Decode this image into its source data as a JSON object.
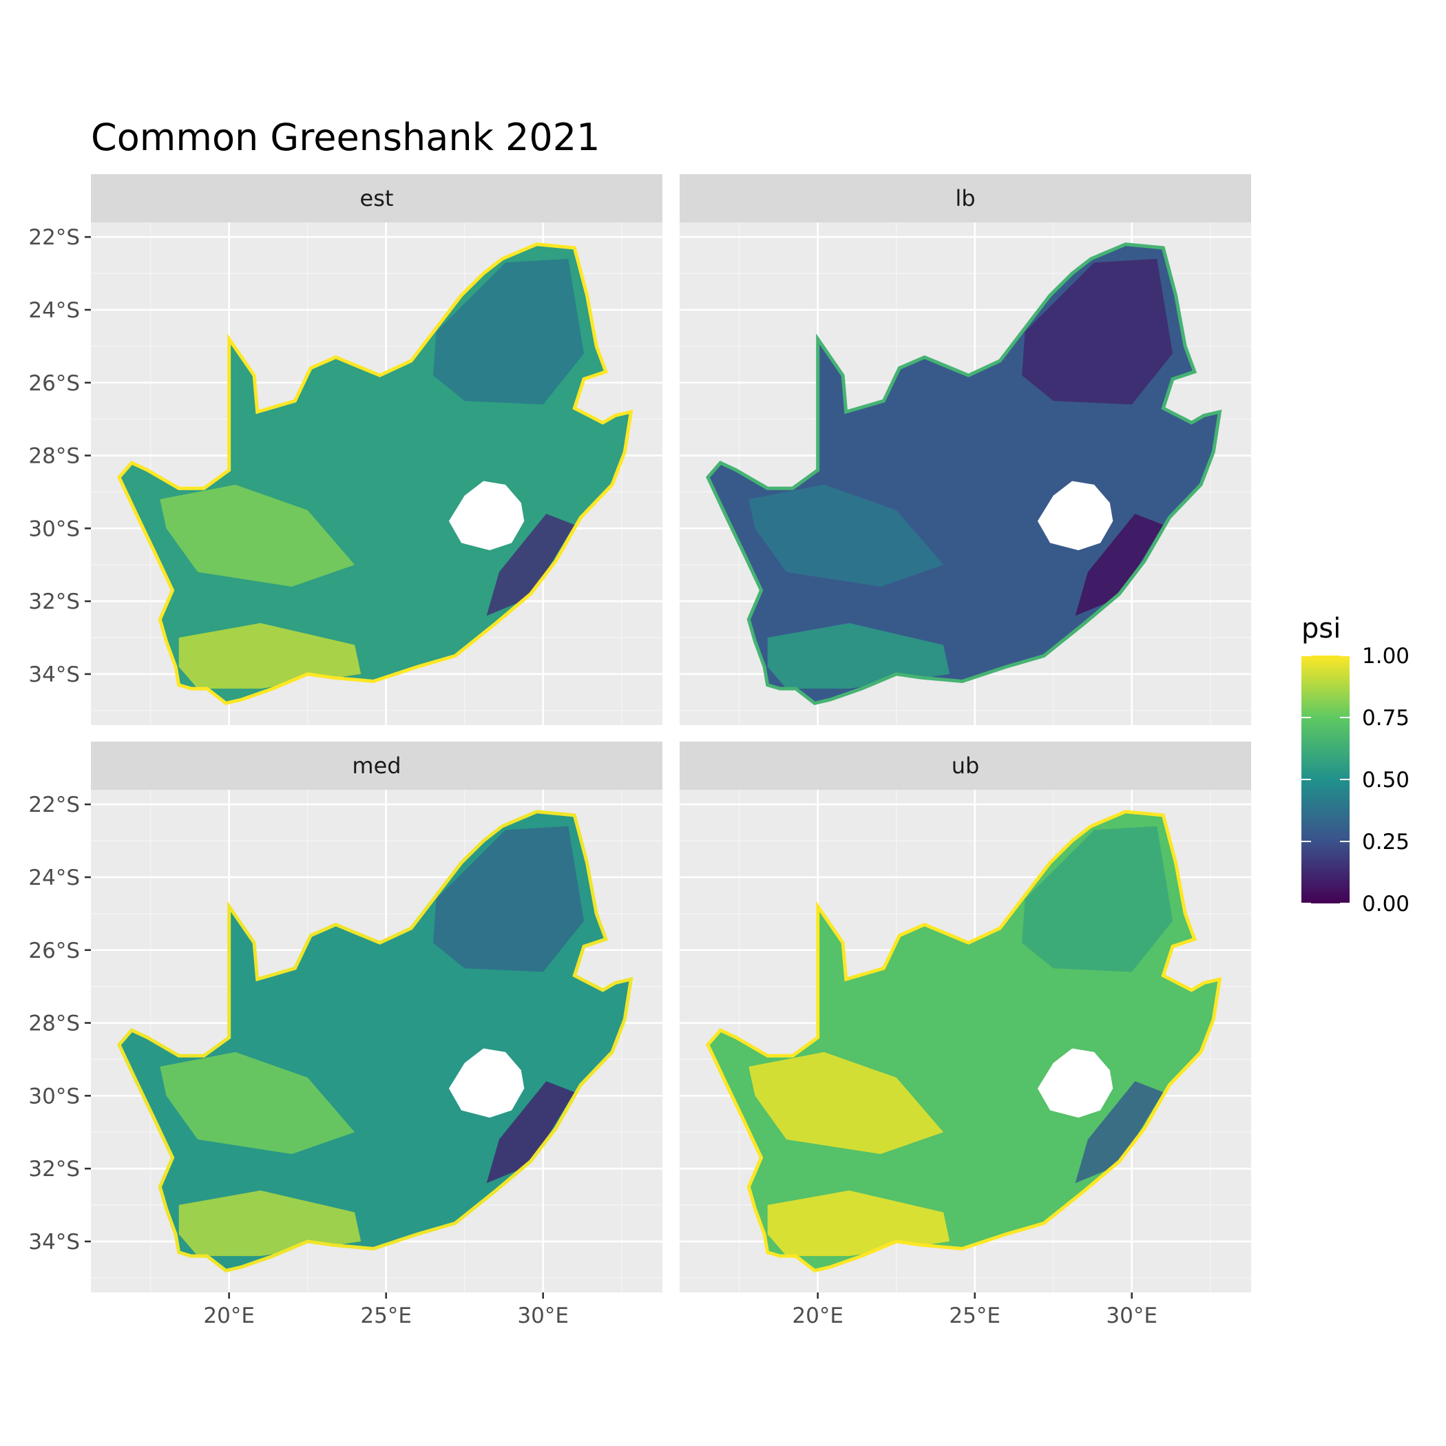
{
  "title": "Common Greenshank 2021",
  "colorscale": {
    "name": "viridis",
    "stops": [
      "#440154",
      "#3b528b",
      "#21918c",
      "#5ec962",
      "#fde725"
    ]
  },
  "chart_data": {
    "type": "heatmap",
    "title": "Common Greenshank 2021",
    "facets": [
      "est",
      "lb",
      "med",
      "ub"
    ],
    "facet_layout": "2x2",
    "x_axis": {
      "ticks": [
        "20°E",
        "25°E",
        "30°E"
      ],
      "tick_values": [
        20,
        25,
        30
      ],
      "range": [
        15.6,
        33.8
      ]
    },
    "y_axis": {
      "ticks": [
        "22°S",
        "24°S",
        "26°S",
        "28°S",
        "30°S",
        "32°S",
        "34°S"
      ],
      "tick_values": [
        -22,
        -24,
        -26,
        -28,
        -30,
        -32,
        -34
      ],
      "range": [
        -35.4,
        -21.6
      ]
    },
    "legend": {
      "title": "psi",
      "labels": [
        "1.00",
        "0.75",
        "0.50",
        "0.25",
        "0.00"
      ],
      "values": [
        1.0,
        0.75,
        0.5,
        0.25,
        0.0
      ],
      "position": "right"
    },
    "panel_summary": [
      {
        "facet": "est",
        "west_interior": 0.8,
        "southwest_coast": 0.9,
        "northeast": 0.4,
        "eastern_escarpment": 0.15
      },
      {
        "facet": "lb",
        "west_interior": 0.4,
        "southwest_coast": 0.55,
        "northeast": 0.12,
        "eastern_escarpment": 0.05
      },
      {
        "facet": "med",
        "west_interior": 0.78,
        "southwest_coast": 0.88,
        "northeast": 0.35,
        "eastern_escarpment": 0.12
      },
      {
        "facet": "ub",
        "west_interior": 0.97,
        "southwest_coast": 0.98,
        "northeast": 0.6,
        "eastern_escarpment": 0.3
      }
    ]
  }
}
